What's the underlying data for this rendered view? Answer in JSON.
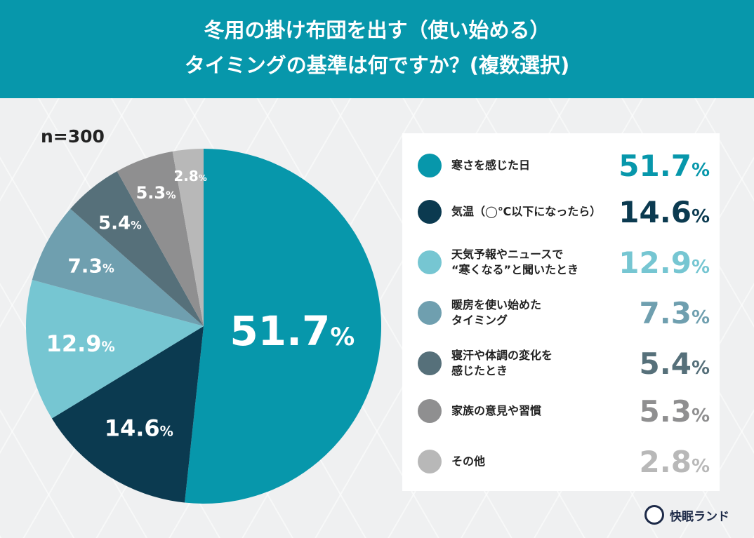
{
  "header": {
    "line1": "冬用の掛け布団を出す（使い始める）",
    "line2": "タイミングの基準は何ですか？(複数選択)"
  },
  "sample": "n=300",
  "brand": {
    "name": "快眠ランド"
  },
  "chart_data": {
    "type": "pie",
    "start": "top",
    "direction": "clockwise",
    "categories": [
      "寒さを感じた日",
      "気温（◯℃以下になったら）",
      "天気予報やニュースで\n“寒くなる”と聞いたとき",
      "暖房を使い始めた\nタイミング",
      "寝汗や体調の変化を\n感じたとき",
      "家族の意見や習慣",
      "その他"
    ],
    "values": [
      51.7,
      14.6,
      12.9,
      7.3,
      5.4,
      5.3,
      2.8
    ],
    "labels": [
      "51.7",
      "14.6",
      "12.9",
      "7.3",
      "5.4",
      "5.3",
      "2.8"
    ],
    "unit": "%",
    "colors": [
      "#0797ab",
      "#0b3a50",
      "#76c6d2",
      "#6f9faf",
      "#56707a",
      "#8f8f90",
      "#b8b8b8"
    ],
    "legend_placement": "right"
  }
}
